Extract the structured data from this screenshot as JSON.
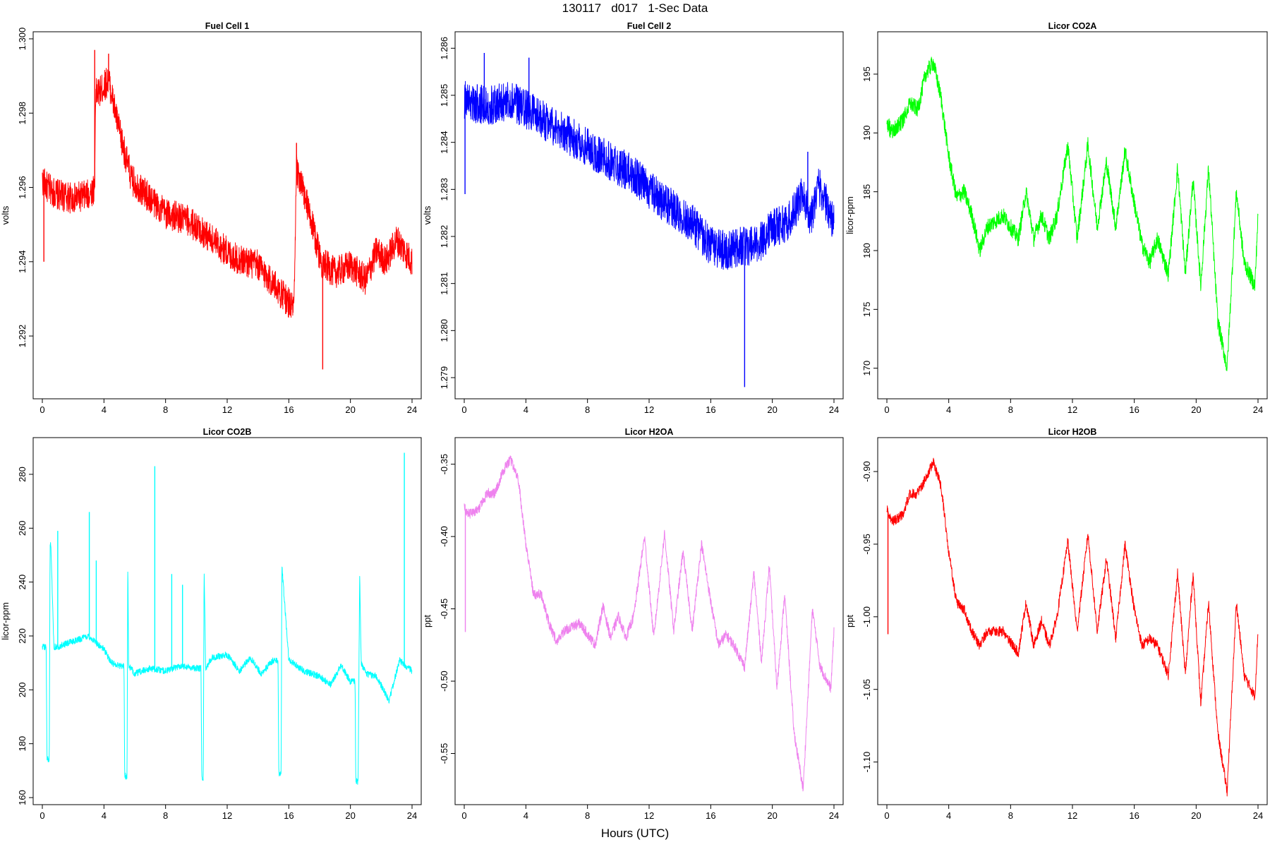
{
  "page": {
    "title": "130117   d017   1-Sec Data",
    "xlabel": "Hours (UTC)"
  },
  "chart_data": [
    {
      "type": "line",
      "title": "Fuel Cell 1",
      "ylabel": "volts",
      "color": "#ff0000",
      "xlim": [
        0,
        24
      ],
      "ylim": [
        1.2905,
        1.3
      ],
      "xticks": [
        0,
        4,
        8,
        12,
        16,
        20,
        24
      ],
      "yticks": [
        "1.292",
        "1.294",
        "1.296",
        "1.298",
        "1.300"
      ],
      "noise": 0.00042,
      "x": [
        0,
        0.3,
        1,
        2,
        3,
        3.4,
        3.45,
        3.8,
        4.3,
        5,
        5.8,
        7,
        8,
        9.5,
        11,
        12.5,
        14,
        15.2,
        16.2,
        16.35,
        16.5,
        17.2,
        18.1,
        19,
        20,
        21,
        21.7,
        22.3,
        23,
        24
      ],
      "y": [
        1.2962,
        1.296,
        1.2958,
        1.2957,
        1.2958,
        1.296,
        1.2985,
        1.2986,
        1.2989,
        1.2975,
        1.2962,
        1.2957,
        1.2953,
        1.2951,
        1.2946,
        1.2941,
        1.2939,
        1.2933,
        1.2928,
        1.2929,
        1.2965,
        1.2955,
        1.294,
        1.2937,
        1.2939,
        1.2935,
        1.2943,
        1.294,
        1.2946,
        1.294
      ],
      "spikes": [
        [
          0.1,
          1.294
        ],
        [
          3.4,
          1.2997
        ],
        [
          4.3,
          1.2996
        ],
        [
          16.5,
          1.2972
        ],
        [
          18.2,
          1.2911
        ]
      ]
    },
    {
      "type": "line",
      "title": "Fuel Cell 2",
      "ylabel": "volts",
      "color": "#0000ff",
      "xlim": [
        0,
        24
      ],
      "ylim": [
        1.2787,
        1.2862
      ],
      "xticks": [
        0,
        4,
        8,
        12,
        16,
        20,
        24
      ],
      "yticks": [
        "1.279",
        "1.280",
        "1.281",
        "1.282",
        "1.283",
        "1.284",
        "1.285",
        "1.286"
      ],
      "noise": 0.00042,
      "x": [
        0,
        1,
        2,
        3,
        4,
        5,
        6,
        7,
        8,
        9,
        10,
        11,
        12,
        13,
        14,
        15,
        16,
        17,
        18,
        19,
        20,
        21,
        22,
        22.5,
        23,
        24
      ],
      "y": [
        1.2849,
        1.2848,
        1.2848,
        1.2849,
        1.2847,
        1.2845,
        1.2843,
        1.2841,
        1.2839,
        1.2837,
        1.2835,
        1.2833,
        1.283,
        1.2827,
        1.2825,
        1.2822,
        1.2818,
        1.2817,
        1.2818,
        1.2818,
        1.2822,
        1.2823,
        1.2829,
        1.2824,
        1.2831,
        1.2823
      ],
      "spikes": [
        [
          0.05,
          1.2829
        ],
        [
          1.3,
          1.2859
        ],
        [
          4.2,
          1.2858
        ],
        [
          18.2,
          1.2788
        ],
        [
          22.3,
          1.2838
        ]
      ]
    },
    {
      "type": "line",
      "title": "Licor CO2A",
      "ylabel": "licor-ppm",
      "color": "#00ff00",
      "xlim": [
        0,
        24
      ],
      "ylim": [
        168,
        198
      ],
      "xticks": [
        0,
        4,
        8,
        12,
        16,
        20,
        24
      ],
      "yticks": [
        "170",
        "175",
        "180",
        "185",
        "190",
        "195"
      ],
      "noise": 0.7,
      "x": [
        0,
        0.3,
        1,
        1.5,
        2,
        2.5,
        3,
        3.5,
        4,
        4.5,
        5,
        5.5,
        6,
        6.5,
        7.5,
        8.5,
        9,
        9.5,
        10,
        10.5,
        11,
        11.7,
        12.3,
        13,
        13.6,
        14.2,
        14.8,
        15.4,
        16,
        16.5,
        17,
        17.5,
        18.2,
        18.8,
        19.3,
        19.8,
        20.3,
        20.8,
        21.4,
        22,
        22.6,
        23.1,
        23.8,
        24
      ],
      "y": [
        191,
        190,
        191,
        192.5,
        192,
        195,
        196,
        193,
        188,
        184.5,
        185,
        183,
        180,
        182,
        183,
        181,
        185,
        181,
        183,
        181,
        183,
        189,
        181,
        189,
        182,
        187.5,
        182,
        188.5,
        184,
        180.5,
        179,
        181,
        178,
        187,
        178,
        186,
        177,
        187,
        174,
        170,
        185,
        179,
        177,
        183
      ]
    },
    {
      "type": "line",
      "title": "Licor CO2B",
      "ylabel": "licor-ppm",
      "color": "#00ffff",
      "xlim": [
        0,
        24
      ],
      "ylim": [
        160,
        291
      ],
      "xticks": [
        0,
        4,
        8,
        12,
        16,
        20,
        24
      ],
      "yticks": [
        "160",
        "180",
        "200",
        "220",
        "240",
        "260",
        "280"
      ],
      "noise": 1.2,
      "x": [
        0,
        0.25,
        0.3,
        0.45,
        0.5,
        0.55,
        0.7,
        0.75,
        1,
        2,
        3,
        4,
        4.5,
        5,
        5.3,
        5.35,
        5.5,
        5.55,
        5.6,
        6,
        7,
        8,
        9,
        10,
        10.3,
        10.35,
        10.45,
        10.5,
        10.6,
        11,
        12,
        12.8,
        13.5,
        14.2,
        15,
        15.3,
        15.35,
        15.5,
        15.55,
        16,
        17,
        18,
        18.7,
        19.4,
        20,
        20.3,
        20.35,
        20.5,
        20.6,
        20.7,
        21,
        21.7,
        22.5,
        23.2,
        24
      ],
      "y": [
        216,
        216,
        175,
        173,
        253,
        254,
        226,
        216,
        216,
        218,
        220,
        215,
        210,
        209,
        209,
        168,
        168,
        248,
        209,
        206,
        208,
        207,
        209,
        208,
        208,
        167,
        167,
        246,
        208,
        212,
        213,
        207,
        212,
        206,
        211,
        211,
        169,
        169,
        246,
        211,
        207,
        205,
        202,
        209,
        203,
        203,
        166,
        166,
        243,
        210,
        206,
        205,
        196,
        211,
        207
      ],
      "spikes": [
        [
          1,
          259
        ],
        [
          3.05,
          266
        ],
        [
          3.5,
          248
        ],
        [
          7.3,
          283
        ],
        [
          8.4,
          243
        ],
        [
          9.1,
          239
        ],
        [
          23.5,
          288
        ]
      ]
    },
    {
      "type": "line",
      "title": "Licor H2OA",
      "ylabel": "ppt",
      "color": "#ee82ee",
      "xlim": [
        0,
        24
      ],
      "ylim": [
        -0.5805,
        -0.3365
      ],
      "xticks": [
        0,
        4,
        8,
        12,
        16,
        20,
        24
      ],
      "yticks": [
        "-0.55",
        "-0.50",
        "-0.45",
        "-0.40",
        "-0.35"
      ],
      "noise": 0.0035,
      "x": [
        0,
        0.3,
        1,
        1.5,
        2,
        2.5,
        3,
        3.5,
        4,
        4.5,
        5,
        5.5,
        6,
        6.5,
        7.5,
        8.5,
        9,
        9.5,
        10,
        10.5,
        11,
        11.7,
        12.3,
        13,
        13.6,
        14.2,
        14.8,
        15.4,
        16,
        16.5,
        17,
        17.5,
        18.2,
        18.8,
        19.3,
        19.8,
        20.3,
        20.8,
        21.4,
        22,
        22.6,
        23.1,
        23.8,
        24
      ],
      "y": [
        -0.38,
        -0.385,
        -0.38,
        -0.37,
        -0.37,
        -0.355,
        -0.347,
        -0.36,
        -0.405,
        -0.44,
        -0.44,
        -0.46,
        -0.473,
        -0.465,
        -0.46,
        -0.475,
        -0.448,
        -0.47,
        -0.455,
        -0.47,
        -0.455,
        -0.4,
        -0.47,
        -0.398,
        -0.465,
        -0.41,
        -0.465,
        -0.405,
        -0.445,
        -0.475,
        -0.468,
        -0.475,
        -0.49,
        -0.425,
        -0.487,
        -0.42,
        -0.505,
        -0.44,
        -0.535,
        -0.575,
        -0.45,
        -0.49,
        -0.505,
        -0.465
      ],
      "spikes": [
        [
          0.07,
          -0.466
        ]
      ]
    },
    {
      "type": "line",
      "title": "Licor H2OB",
      "ylabel": "ppt",
      "color": "#ff0000",
      "xlim": [
        0,
        24
      ],
      "ylim": [
        -1.1245,
        -0.8815
      ],
      "xticks": [
        0,
        4,
        8,
        12,
        16,
        20,
        24
      ],
      "yticks": [
        "-1.10",
        "-1.05",
        "-1.00",
        "-0.95",
        "-0.90"
      ],
      "noise": 0.0035,
      "x": [
        0,
        0.3,
        1,
        1.5,
        2,
        2.5,
        3,
        3.5,
        4,
        4.5,
        5,
        5.5,
        6,
        6.5,
        7.5,
        8.5,
        9,
        9.5,
        10,
        10.5,
        11,
        11.7,
        12.3,
        13,
        13.6,
        14.2,
        14.8,
        15.4,
        16,
        16.5,
        17,
        17.5,
        18.2,
        18.8,
        19.3,
        19.8,
        20.3,
        20.8,
        21.4,
        22,
        22.6,
        23.1,
        23.8,
        24
      ],
      "y": [
        -0.925,
        -0.935,
        -0.93,
        -0.915,
        -0.915,
        -0.905,
        -0.893,
        -0.91,
        -0.955,
        -0.99,
        -0.995,
        -1.01,
        -1.02,
        -1.01,
        -1.01,
        -1.025,
        -0.99,
        -1.02,
        -1.003,
        -1.02,
        -1.0,
        -0.948,
        -1.01,
        -0.943,
        -1.01,
        -0.96,
        -1.015,
        -0.95,
        -0.995,
        -1.02,
        -1.015,
        -1.02,
        -1.04,
        -0.97,
        -1.04,
        -0.97,
        -1.06,
        -0.99,
        -1.08,
        -1.12,
        -0.99,
        -1.04,
        -1.055,
        -1.01
      ],
      "spikes": [
        [
          0.07,
          -1.012
        ]
      ]
    }
  ]
}
